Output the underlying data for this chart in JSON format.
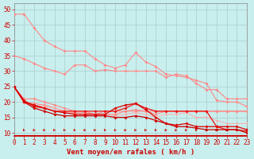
{
  "bg_color": "#c8eeed",
  "grid_color": "#aacccc",
  "xlabel": "Vent moyen/en rafales ( km/h )",
  "ylim": [
    9,
    52
  ],
  "xlim": [
    0,
    23
  ],
  "yticks": [
    10,
    15,
    20,
    25,
    30,
    35,
    40,
    45,
    50
  ],
  "xticks": [
    0,
    1,
    2,
    3,
    4,
    5,
    6,
    7,
    8,
    9,
    10,
    11,
    12,
    13,
    14,
    15,
    16,
    17,
    18,
    19,
    20,
    21,
    22,
    23
  ],
  "series": [
    {
      "x": [
        0,
        1,
        2,
        3,
        4,
        5,
        6,
        7,
        8,
        9,
        10,
        11,
        12,
        13,
        14,
        15,
        16,
        17,
        18,
        19,
        20,
        21,
        22,
        23
      ],
      "y": [
        48.5,
        48.5,
        44,
        40,
        38,
        36.5,
        36.5,
        36.5,
        34,
        32,
        31,
        32,
        36,
        33,
        31.5,
        29,
        28.5,
        28,
        27,
        26,
        20.5,
        20,
        20,
        18.5
      ],
      "color": "#ff8888",
      "lw": 0.8,
      "marker": "D",
      "ms": 2.0
    },
    {
      "x": [
        0,
        1,
        2,
        3,
        4,
        5,
        6,
        7,
        8,
        9,
        10,
        11,
        12,
        13,
        14,
        15,
        16,
        17,
        18,
        19,
        20,
        21,
        22,
        23
      ],
      "y": [
        35,
        34,
        32.5,
        31,
        30,
        29,
        32,
        32,
        30,
        30.5,
        30,
        30,
        30,
        30,
        30,
        28,
        29,
        28.5,
        26,
        24,
        24,
        21,
        21,
        21
      ],
      "color": "#ff8888",
      "lw": 0.8,
      "marker": "D",
      "ms": 2.0
    },
    {
      "x": [
        0,
        1,
        2,
        3,
        4,
        5,
        6,
        7,
        8,
        9,
        10,
        11,
        12,
        13,
        14,
        15,
        16,
        17,
        18,
        19,
        20,
        21,
        22,
        23
      ],
      "y": [
        25,
        21,
        21,
        20,
        19,
        18,
        17,
        17,
        16,
        17,
        17,
        17,
        17,
        17,
        17,
        17,
        17,
        17,
        17,
        17,
        17,
        17,
        17,
        17
      ],
      "color": "#ff8888",
      "lw": 0.8,
      "marker": "D",
      "ms": 2.0
    },
    {
      "x": [
        0,
        1,
        2,
        3,
        4,
        5,
        6,
        7,
        8,
        9,
        10,
        11,
        12,
        13,
        14,
        15,
        16,
        17,
        18,
        19,
        20,
        21,
        22,
        23
      ],
      "y": [
        25,
        20,
        19.5,
        19,
        18,
        17,
        16.5,
        16.5,
        16,
        16,
        16,
        17,
        17.5,
        17,
        16,
        17,
        17,
        17,
        17,
        17,
        17,
        17,
        17,
        17
      ],
      "color": "#ff8888",
      "lw": 0.8,
      "marker": "D",
      "ms": 2.0
    },
    {
      "x": [
        0,
        1,
        2,
        3,
        4,
        5,
        6,
        7,
        8,
        9,
        10,
        11,
        12,
        13,
        14,
        15,
        16,
        17,
        18,
        19,
        20,
        21,
        22,
        23
      ],
      "y": [
        25,
        19.5,
        19,
        18.5,
        18,
        17,
        16,
        16,
        16,
        16,
        15.5,
        16,
        16.5,
        16,
        15,
        16,
        16,
        16.5,
        15,
        15,
        14,
        13,
        13,
        13
      ],
      "color": "#ffaaaa",
      "lw": 0.7,
      "marker": "D",
      "ms": 1.5
    },
    {
      "x": [
        0,
        1,
        2,
        3,
        4,
        5,
        6,
        7,
        8,
        9,
        10,
        11,
        12,
        13,
        14,
        15,
        16,
        17,
        18,
        19,
        20,
        21,
        22,
        23
      ],
      "y": [
        25,
        20.5,
        18.5,
        18,
        17,
        17,
        17,
        17,
        17,
        17,
        17,
        18,
        19.5,
        18,
        17,
        17,
        17,
        17,
        17,
        17,
        12,
        11,
        11,
        10.5
      ],
      "color": "#ee1111",
      "lw": 0.9,
      "marker": "D",
      "ms": 2.0
    },
    {
      "x": [
        0,
        1,
        2,
        3,
        4,
        5,
        6,
        7,
        8,
        9,
        10,
        11,
        12,
        13,
        14,
        15,
        16,
        17,
        18,
        19,
        20,
        21,
        22,
        23
      ],
      "y": [
        25,
        20,
        19,
        18,
        17,
        16.5,
        16,
        16,
        16,
        16,
        18,
        19,
        19.5,
        17.5,
        15,
        13,
        12.5,
        13,
        12,
        12,
        12,
        12,
        12,
        11
      ],
      "color": "#dd0000",
      "lw": 0.9,
      "marker": "D",
      "ms": 2.0
    },
    {
      "x": [
        0,
        1,
        2,
        3,
        4,
        5,
        6,
        7,
        8,
        9,
        10,
        11,
        12,
        13,
        14,
        15,
        16,
        17,
        18,
        19,
        20,
        21,
        22,
        23
      ],
      "y": [
        25,
        20,
        18,
        17,
        16,
        15.5,
        15.5,
        15.5,
        15.5,
        15.5,
        15,
        15,
        15.5,
        15,
        14,
        13,
        12,
        12,
        11.5,
        11,
        11,
        11,
        11,
        10
      ],
      "color": "#cc0000",
      "lw": 0.9,
      "marker": "D",
      "ms": 2.0
    }
  ],
  "arrow_color": "#cc0000",
  "xlabel_color": "#cc0000",
  "xlabel_size": 6.5,
  "tick_label_color": "#cc0000",
  "tick_label_size": 5.5,
  "spine_color": "#888888",
  "bottom_line_color": "#cc0000"
}
